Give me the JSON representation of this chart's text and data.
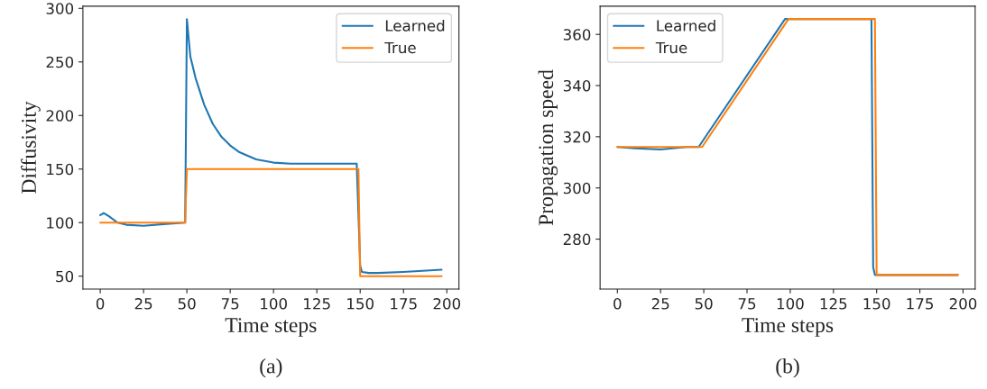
{
  "chart_data": [
    {
      "type": "line",
      "xlabel": "Time steps",
      "ylabel": "Diffusivity",
      "annotations": [
        "(a)"
      ],
      "xlim": [
        -10,
        207
      ],
      "ylim": [
        38,
        302
      ],
      "xticks": [
        0,
        25,
        50,
        75,
        100,
        125,
        150,
        175,
        200
      ],
      "yticks": [
        50,
        100,
        150,
        200,
        250,
        300
      ],
      "legend": "top right",
      "grid": false,
      "series": [
        {
          "name": "Learned",
          "color": "#1f77b4",
          "x": [
            0,
            2,
            5,
            10,
            15,
            25,
            40,
            49,
            50,
            52,
            55,
            60,
            65,
            70,
            75,
            80,
            90,
            100,
            110,
            125,
            148,
            150,
            151,
            155,
            160,
            175,
            197
          ],
          "values": [
            107,
            109,
            106,
            100,
            98,
            97,
            99,
            100,
            290,
            255,
            235,
            210,
            192,
            180,
            172,
            166,
            159,
            156,
            155,
            155,
            155,
            60,
            54,
            53,
            53,
            54,
            56
          ]
        },
        {
          "name": "True",
          "color": "#ff7f0e",
          "x": [
            0,
            49,
            50,
            149,
            150,
            197
          ],
          "values": [
            100,
            100,
            150,
            150,
            50,
            50
          ]
        }
      ]
    },
    {
      "type": "line",
      "xlabel": "Time steps",
      "ylabel": "Propagation speed",
      "annotations": [
        "(b)"
      ],
      "xlim": [
        -10,
        207
      ],
      "ylim": [
        260.5,
        371
      ],
      "xticks": [
        0,
        25,
        50,
        75,
        100,
        125,
        150,
        175,
        200
      ],
      "yticks": [
        280,
        300,
        320,
        340,
        360
      ],
      "legend": "top left",
      "grid": false,
      "series": [
        {
          "name": "Learned",
          "color": "#1f77b4",
          "x": [
            0,
            10,
            25,
            40,
            47,
            97,
            147,
            148,
            149,
            197
          ],
          "values": [
            316,
            315.5,
            315,
            316,
            316,
            366,
            366,
            269,
            266,
            266
          ]
        },
        {
          "name": "True",
          "color": "#ff7f0e",
          "x": [
            0,
            49,
            99,
            149,
            150,
            197
          ],
          "values": [
            316,
            316,
            366,
            366,
            266,
            266
          ]
        }
      ]
    }
  ]
}
